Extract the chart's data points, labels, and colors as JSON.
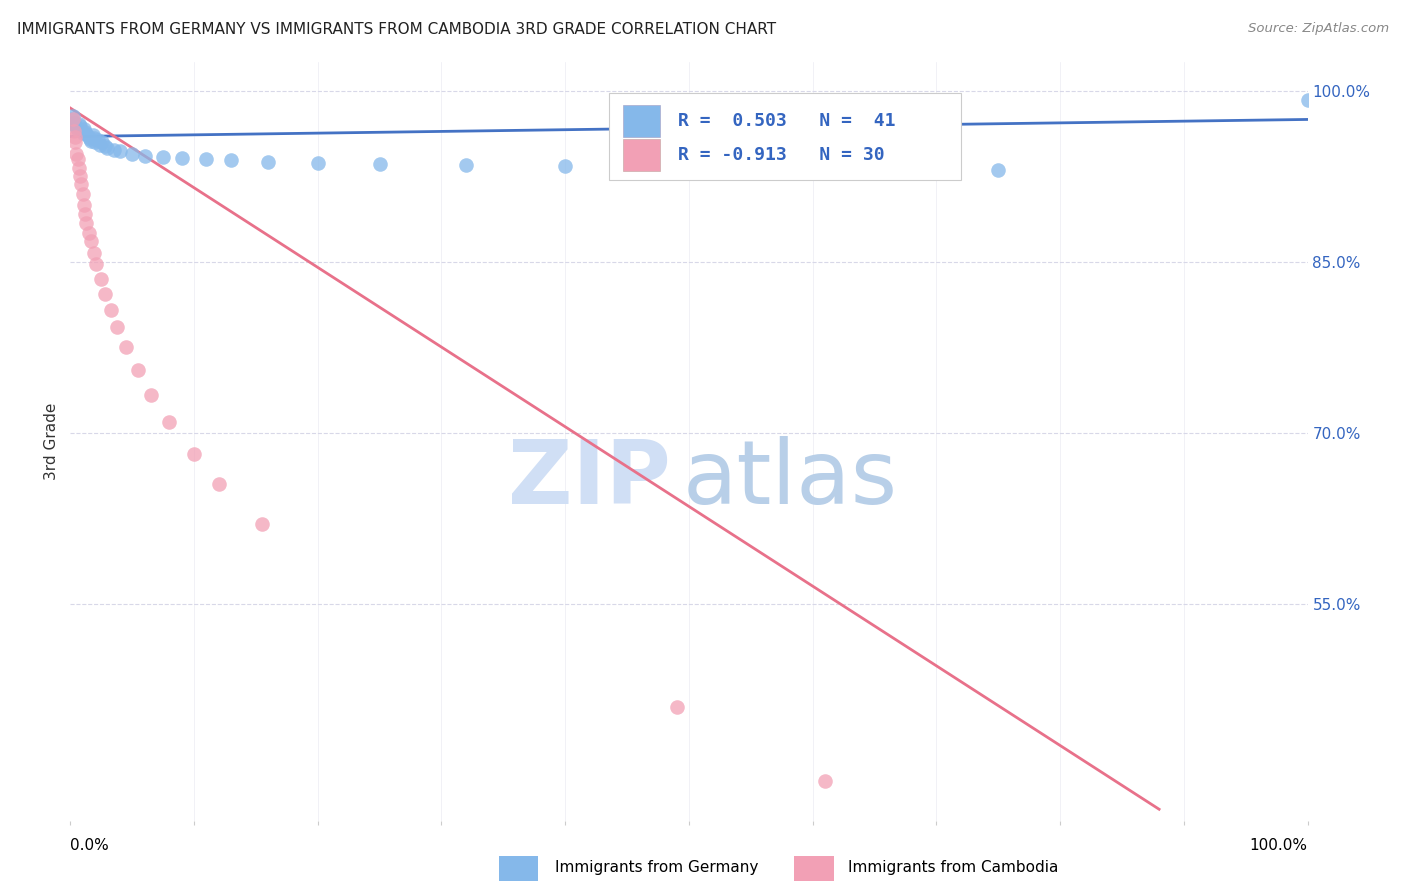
{
  "title": "IMMIGRANTS FROM GERMANY VS IMMIGRANTS FROM CAMBODIA 3RD GRADE CORRELATION CHART",
  "source": "Source: ZipAtlas.com",
  "ylabel": "3rd Grade",
  "right_yticks": [
    "100.0%",
    "85.0%",
    "70.0%",
    "55.0%"
  ],
  "right_ytick_vals": [
    1.0,
    0.85,
    0.7,
    0.55
  ],
  "germany_R": 0.503,
  "germany_N": 41,
  "cambodia_R": -0.913,
  "cambodia_N": 30,
  "germany_color": "#85b8ea",
  "cambodia_color": "#f2a0b5",
  "germany_line_color": "#4472c4",
  "cambodia_line_color": "#e8718a",
  "legend_text_color": "#3465c0",
  "watermark_zip_color": "#d0dff5",
  "watermark_atlas_color": "#b8cfe8",
  "background_color": "#ffffff",
  "grid_color": "#d8d8e8",
  "xlim": [
    0.0,
    1.0
  ],
  "ylim": [
    0.36,
    1.025
  ],
  "germany_x": [
    0.001,
    0.002,
    0.003,
    0.004,
    0.005,
    0.006,
    0.007,
    0.008,
    0.009,
    0.01,
    0.011,
    0.012,
    0.013,
    0.015,
    0.016,
    0.017,
    0.018,
    0.019,
    0.02,
    0.022,
    0.024,
    0.026,
    0.028,
    0.03,
    0.035,
    0.04,
    0.05,
    0.06,
    0.075,
    0.09,
    0.11,
    0.13,
    0.16,
    0.2,
    0.25,
    0.32,
    0.4,
    0.5,
    0.65,
    0.75,
    1.0
  ],
  "germany_y": [
    0.975,
    0.978,
    0.972,
    0.97,
    0.968,
    0.966,
    0.971,
    0.969,
    0.965,
    0.963,
    0.967,
    0.964,
    0.962,
    0.96,
    0.958,
    0.956,
    0.961,
    0.959,
    0.955,
    0.957,
    0.953,
    0.955,
    0.952,
    0.95,
    0.948,
    0.947,
    0.945,
    0.943,
    0.942,
    0.941,
    0.94,
    0.939,
    0.938,
    0.937,
    0.936,
    0.935,
    0.934,
    0.933,
    0.932,
    0.931,
    0.992
  ],
  "cambodia_x": [
    0.002,
    0.003,
    0.004,
    0.004,
    0.005,
    0.006,
    0.007,
    0.008,
    0.009,
    0.01,
    0.011,
    0.012,
    0.013,
    0.015,
    0.017,
    0.019,
    0.021,
    0.025,
    0.028,
    0.033,
    0.038,
    0.045,
    0.055,
    0.065,
    0.08,
    0.1,
    0.12,
    0.155,
    0.49,
    0.61
  ],
  "cambodia_y": [
    0.975,
    0.965,
    0.96,
    0.955,
    0.945,
    0.94,
    0.932,
    0.925,
    0.918,
    0.91,
    0.9,
    0.892,
    0.884,
    0.875,
    0.868,
    0.858,
    0.848,
    0.835,
    0.822,
    0.808,
    0.793,
    0.775,
    0.755,
    0.733,
    0.71,
    0.682,
    0.655,
    0.62,
    0.46,
    0.395
  ],
  "germany_trend_x": [
    0.0,
    1.0
  ],
  "germany_trend_y": [
    0.96,
    0.975
  ],
  "cambodia_trend_x": [
    0.0,
    0.88
  ],
  "cambodia_trend_y": [
    0.985,
    0.37
  ]
}
